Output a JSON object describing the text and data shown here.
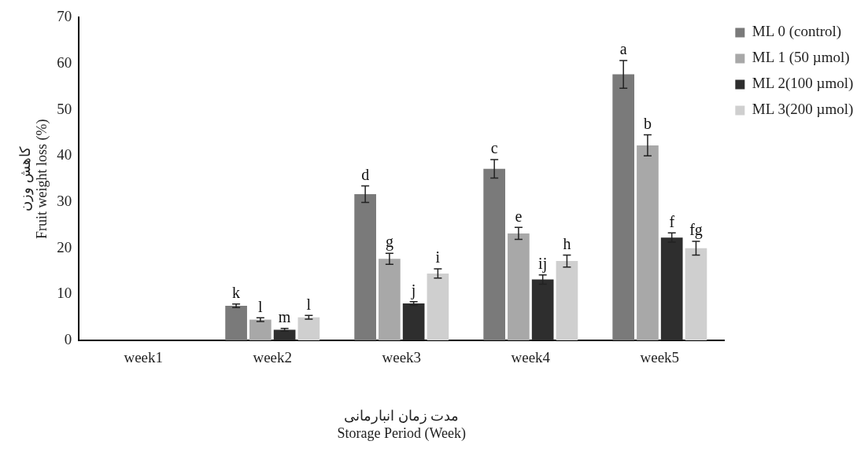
{
  "chart_data": {
    "type": "bar",
    "xlabel": "مدت زمان انبارمانی\nStorage Period (Week)",
    "ylabel": "کاهش وزن\nFruit weight loss (%)",
    "categories": [
      "week1",
      "week2",
      "week3",
      "week4",
      "week5"
    ],
    "series": [
      {
        "name": "ML 0 (control)",
        "color": "#7a7a7a",
        "values": [
          0,
          7.5,
          31.7,
          37.2,
          57.7
        ],
        "errors": [
          null,
          0.4,
          1.8,
          2,
          3
        ],
        "value_labels": [
          null,
          "k",
          "d",
          "c",
          "a"
        ]
      },
      {
        "name": "ML 1 (50 µmol)",
        "color": "#a8a8a8",
        "values": [
          0,
          4.5,
          17.7,
          23.2,
          42.3
        ],
        "errors": [
          null,
          0.4,
          1.2,
          1.3,
          2.3
        ],
        "value_labels": [
          null,
          "l",
          "g",
          "e",
          "b"
        ]
      },
      {
        "name": "ML 2(100 µmol)",
        "color": "#2e2e2e",
        "values": [
          0,
          2.3,
          8,
          13.2,
          22.3
        ],
        "errors": [
          null,
          0.3,
          0.4,
          1,
          1
        ],
        "value_labels": [
          null,
          "m",
          "j",
          "ij",
          "f"
        ]
      },
      {
        "name": "ML 3(200 µmol)",
        "color": "#cfcfcf",
        "values": [
          0,
          5,
          14.5,
          17.2,
          20
        ],
        "errors": [
          null,
          0.4,
          1,
          1.3,
          1.5
        ],
        "value_labels": [
          null,
          "l",
          "i",
          "h",
          "fg"
        ]
      }
    ],
    "ylim": [
      0,
      70
    ],
    "yticks": [
      0,
      10,
      20,
      30,
      40,
      50,
      60,
      70
    ],
    "grid": false,
    "legend": "top right"
  }
}
